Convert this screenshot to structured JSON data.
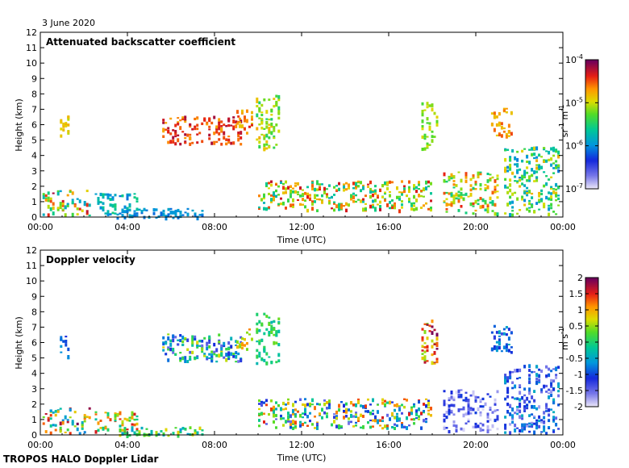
{
  "date": "3 June 2020",
  "footer": "TROPOS HALO Doppler Lidar",
  "chart_data": [
    {
      "type": "heatmap",
      "title": "Attenuated backscatter coefficient",
      "xlabel": "Time (UTC)",
      "ylabel": "Height (km)",
      "xlim": [
        0,
        24
      ],
      "ylim": [
        0,
        12
      ],
      "x_ticks": [
        "00:00",
        "04:00",
        "08:00",
        "12:00",
        "16:00",
        "20:00",
        "00:00"
      ],
      "y_ticks": [
        "0",
        "1",
        "2",
        "3",
        "4",
        "5",
        "6",
        "7",
        "8",
        "9",
        "10",
        "11",
        "12"
      ],
      "colorbar": {
        "scale": "log",
        "unit_base": "sr",
        "unit_exp1": "-1",
        "unit_mid": " m",
        "unit_exp2": "-1",
        "ticks": [
          {
            "base": "10",
            "exp": "-4",
            "value": -4
          },
          {
            "base": "10",
            "exp": "-5",
            "value": -5
          },
          {
            "base": "10",
            "exp": "-6",
            "value": -6
          },
          {
            "base": "10",
            "exp": "-7",
            "value": -7
          }
        ],
        "range": [
          -7,
          -4
        ]
      },
      "features": [
        {
          "t0": 0.1,
          "t1": 2.3,
          "h0": 0.1,
          "h1": 1.8,
          "v0": 0.35,
          "v1": 0.95
        },
        {
          "t0": 2.5,
          "t1": 4.5,
          "h0": 0.2,
          "h1": 1.6,
          "v0": 0.3,
          "v1": 0.5
        },
        {
          "t0": 3.5,
          "t1": 7.5,
          "h0": 0.0,
          "h1": 0.6,
          "v0": 0.28,
          "v1": 0.38
        },
        {
          "t0": 5.6,
          "t1": 9.2,
          "h0": 4.8,
          "h1": 6.6,
          "v0": 0.75,
          "v1": 0.95
        },
        {
          "t0": 9.0,
          "t1": 9.7,
          "h0": 5.5,
          "h1": 7.0,
          "v0": 0.7,
          "v1": 0.9
        },
        {
          "t0": 9.9,
          "t1": 11.0,
          "h0": 4.5,
          "h1": 8.0,
          "v0": 0.5,
          "v1": 0.75
        },
        {
          "t0": 10.0,
          "t1": 18.0,
          "h0": 0.5,
          "h1": 2.4,
          "v0": 0.4,
          "v1": 0.92
        },
        {
          "t0": 17.5,
          "t1": 18.2,
          "h0": 4.5,
          "h1": 7.5,
          "v0": 0.55,
          "v1": 0.7
        },
        {
          "t0": 18.5,
          "t1": 21.0,
          "h0": 0.3,
          "h1": 3.0,
          "v0": 0.45,
          "v1": 0.88
        },
        {
          "t0": 20.7,
          "t1": 21.6,
          "h0": 5.3,
          "h1": 7.2,
          "v0": 0.7,
          "v1": 0.85
        },
        {
          "t0": 21.3,
          "t1": 23.8,
          "h0": 0.2,
          "h1": 4.6,
          "v0": 0.3,
          "v1": 0.75
        },
        {
          "t0": 0.9,
          "t1": 1.3,
          "h0": 5.0,
          "h1": 6.6,
          "v0": 0.65,
          "v1": 0.75
        }
      ]
    },
    {
      "type": "heatmap",
      "title": "Doppler velocity",
      "xlabel": "Time (UTC)",
      "ylabel": "Height (km)",
      "xlim": [
        0,
        24
      ],
      "ylim": [
        0,
        12
      ],
      "x_ticks": [
        "00:00",
        "04:00",
        "08:00",
        "12:00",
        "16:00",
        "20:00",
        "00:00"
      ],
      "y_ticks": [
        "0",
        "1",
        "2",
        "3",
        "4",
        "5",
        "6",
        "7",
        "8",
        "9",
        "10",
        "11",
        "12"
      ],
      "colorbar": {
        "scale": "linear",
        "unit_base": "m",
        "unit_exp1": "",
        "unit_mid": " s",
        "unit_exp2": "-1",
        "ticks": [
          {
            "base": "2",
            "value": 2
          },
          {
            "base": "1.5",
            "value": 1.5
          },
          {
            "base": "1",
            "value": 1
          },
          {
            "base": "0.5",
            "value": 0.5
          },
          {
            "base": "0",
            "value": 0
          },
          {
            "base": "-0.5",
            "value": -0.5
          },
          {
            "base": "-1",
            "value": -1
          },
          {
            "base": "-1.5",
            "value": -1.5
          },
          {
            "base": "-2",
            "value": -2
          }
        ],
        "range": [
          -2,
          2
        ]
      },
      "features": [
        {
          "t0": 0.1,
          "t1": 2.3,
          "h0": 0.1,
          "h1": 1.8,
          "v0": 0.3,
          "v1": 1.0
        },
        {
          "t0": 2.5,
          "t1": 4.5,
          "h0": 0.2,
          "h1": 1.6,
          "v0": 0.4,
          "v1": 0.9
        },
        {
          "t0": 3.5,
          "t1": 7.5,
          "h0": 0.0,
          "h1": 0.6,
          "v0": 0.35,
          "v1": 0.75
        },
        {
          "t0": 5.6,
          "t1": 9.2,
          "h0": 4.8,
          "h1": 6.6,
          "v0": 0.1,
          "v1": 0.7
        },
        {
          "t0": 9.0,
          "t1": 9.7,
          "h0": 5.5,
          "h1": 7.0,
          "v0": 0.6,
          "v1": 0.8
        },
        {
          "t0": 9.9,
          "t1": 11.0,
          "h0": 4.5,
          "h1": 8.0,
          "v0": 0.4,
          "v1": 0.6
        },
        {
          "t0": 10.0,
          "t1": 18.0,
          "h0": 0.5,
          "h1": 2.4,
          "v0": 0.1,
          "v1": 0.9
        },
        {
          "t0": 17.5,
          "t1": 18.2,
          "h0": 4.5,
          "h1": 7.5,
          "v0": 0.6,
          "v1": 1.0
        },
        {
          "t0": 18.5,
          "t1": 21.0,
          "h0": 0.3,
          "h1": 3.0,
          "v0": 0.0,
          "v1": 0.25
        },
        {
          "t0": 20.7,
          "t1": 21.6,
          "h0": 5.3,
          "h1": 7.2,
          "v0": 0.15,
          "v1": 0.4
        },
        {
          "t0": 21.3,
          "t1": 23.8,
          "h0": 0.2,
          "h1": 4.6,
          "v0": 0.05,
          "v1": 0.4
        },
        {
          "t0": 0.9,
          "t1": 1.3,
          "h0": 5.0,
          "h1": 6.6,
          "v0": 0.2,
          "v1": 0.4
        }
      ]
    }
  ]
}
